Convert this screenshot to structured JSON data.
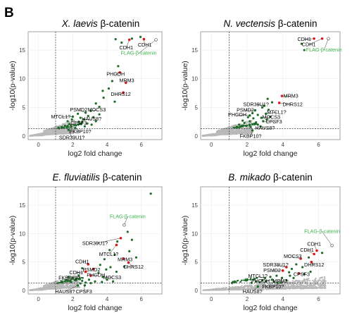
{
  "figure_label": "B",
  "x_axis_title": "log2 fold change",
  "y_axis_title": "-log10(p-value)",
  "x_ticks": [
    "0",
    "2",
    "4",
    "6"
  ],
  "y_ticks": [
    "0",
    "5",
    "10",
    "15"
  ],
  "colors": {
    "bg_point": "#b9b9b9",
    "sig": "#1f6b2a",
    "red": "#d7191c",
    "flag_label": "#3bb34a"
  },
  "chart_data": [
    {
      "type": "scatter",
      "title_species": "X. laevis",
      "title_suffix": " β-catenin",
      "xlabel": "log2 fold change",
      "ylabel": "-log10(p-value)",
      "xlim": [
        -0.6,
        7.2
      ],
      "ylim": [
        -0.6,
        18.2
      ],
      "thresholds": {
        "x": 1.0,
        "y": 1.3
      },
      "highlight": [
        {
          "label": "CDH1",
          "x": 5.3,
          "y": 16.8,
          "kind": "red",
          "lx": 5.12,
          "ly": 15.15,
          "anchor": "middle"
        },
        {
          "label": "CDH1",
          "x": 6.15,
          "y": 16.9,
          "kind": "red",
          "lx": 6.2,
          "ly": 15.6,
          "anchor": "middle"
        },
        {
          "label": "FLAG-β-catenin",
          "x": 6.85,
          "y": 16.8,
          "kind": "flag",
          "lx": 5.85,
          "ly": 14.2,
          "anchor": "middle"
        },
        {
          "label": "PHGDH",
          "x": 4.75,
          "y": 11.1,
          "kind": "red",
          "lx": 4.5,
          "ly": 10.55,
          "anchor": "middle"
        },
        {
          "label": "MRM3",
          "x": 5.1,
          "y": 9.3,
          "kind": "red",
          "lx": 5.15,
          "ly": 9.4,
          "anchor": "middle"
        },
        {
          "label": "DHRS12",
          "x": 4.95,
          "y": 7.6,
          "kind": "red",
          "lx": 4.8,
          "ly": 7.0,
          "anchor": "middle"
        },
        {
          "label": "MOCS3",
          "x": 3.05,
          "y": 4.4,
          "kind": "green",
          "lx": 3.4,
          "ly": 4.3,
          "anchor": "middle"
        },
        {
          "label": "PSMD2",
          "x": 2.75,
          "y": 4.1,
          "kind": "green",
          "lx": 2.35,
          "ly": 4.3,
          "anchor": "middle"
        },
        {
          "label": "MTCL1?",
          "x": 2.0,
          "y": 3.4,
          "kind": "green",
          "lx": 1.3,
          "ly": 3.1,
          "anchor": "middle"
        },
        {
          "label": "HAUS8?",
          "x": 2.65,
          "y": 2.9,
          "kind": "green",
          "lx": 3.1,
          "ly": 2.7,
          "anchor": "middle"
        },
        {
          "label": "CPSF3",
          "x": 2.35,
          "y": 2.5,
          "kind": "green",
          "lx": 2.35,
          "ly": 1.95,
          "anchor": "middle"
        },
        {
          "label": "FKBP10?",
          "x": 2.15,
          "y": 1.4,
          "kind": "green",
          "lx": 2.45,
          "ly": 0.5,
          "anchor": "middle"
        },
        {
          "label": "SDR39U1?",
          "x": 1.75,
          "y": 1.1,
          "kind": "green",
          "lx": 1.95,
          "ly": -0.55,
          "anchor": "middle"
        }
      ],
      "sig_points": [
        [
          4.5,
          16.9
        ],
        [
          4.85,
          16.3
        ],
        [
          5.45,
          17.0
        ],
        [
          5.95,
          17.3
        ],
        [
          4.65,
          12.2
        ],
        [
          4.3,
          9.6
        ],
        [
          4.1,
          8.3
        ],
        [
          3.75,
          7.9
        ],
        [
          3.8,
          6.7
        ],
        [
          3.35,
          5.7
        ],
        [
          3.55,
          5.1
        ],
        [
          4.45,
          6.0
        ],
        [
          2.3,
          3.9
        ],
        [
          2.45,
          3.2
        ],
        [
          2.9,
          3.5
        ],
        [
          3.2,
          3.3
        ],
        [
          3.55,
          3.8
        ],
        [
          1.7,
          2.6
        ],
        [
          1.8,
          2.1
        ],
        [
          1.95,
          2.9
        ],
        [
          2.55,
          2.5
        ],
        [
          2.85,
          2.2
        ],
        [
          1.55,
          1.8
        ],
        [
          1.65,
          1.5
        ],
        [
          1.9,
          1.6
        ],
        [
          2.15,
          1.9
        ],
        [
          2.7,
          1.7
        ],
        [
          3.1,
          2.0
        ],
        [
          3.35,
          2.6
        ],
        [
          1.35,
          1.6
        ]
      ],
      "cloud": {
        "kind": "left",
        "x_start": -0.5,
        "x_end": 2.1,
        "slope": 1.05,
        "base": 0.1
      }
    },
    {
      "type": "scatter",
      "title_species": "N. vectensis",
      "title_suffix": " β-catenin",
      "xlabel": "log2 fold change",
      "ylabel": "-log10(p-value)",
      "xlim": [
        -0.6,
        7.2
      ],
      "ylim": [
        -0.6,
        18.2
      ],
      "thresholds": {
        "x": 1.0,
        "y": 1.3
      },
      "highlight": [
        {
          "label": "CDH1",
          "x": 5.75,
          "y": 17.0,
          "kind": "red",
          "lx": 5.2,
          "ly": 16.6,
          "anchor": "middle"
        },
        {
          "label": "CDH1",
          "x": 6.2,
          "y": 17.0,
          "kind": "red",
          "lx": 5.45,
          "ly": 15.7,
          "anchor": "middle"
        },
        {
          "label": "FLAG-β-catenin",
          "x": 6.55,
          "y": 17.0,
          "kind": "flag",
          "lx": 6.3,
          "ly": 14.75,
          "anchor": "middle"
        },
        {
          "label": "MRM3",
          "x": 3.95,
          "y": 7.0,
          "kind": "red",
          "lx": 4.45,
          "ly": 6.7,
          "anchor": "middle"
        },
        {
          "label": "DHRS12",
          "x": 3.8,
          "y": 5.8,
          "kind": "red",
          "lx": 4.55,
          "ly": 5.25,
          "anchor": "middle"
        },
        {
          "label": "SDR39U1?",
          "x": 2.95,
          "y": 5.3,
          "kind": "green",
          "lx": 2.5,
          "ly": 5.25,
          "anchor": "middle"
        },
        {
          "label": "PSMD2",
          "x": 2.45,
          "y": 4.5,
          "kind": "green",
          "lx": 1.9,
          "ly": 4.25,
          "anchor": "middle"
        },
        {
          "label": "MTCL1?",
          "x": 3.05,
          "y": 3.9,
          "kind": "green",
          "lx": 3.65,
          "ly": 3.9,
          "anchor": "middle"
        },
        {
          "label": "PHGDH",
          "x": 2.15,
          "y": 3.6,
          "kind": "green",
          "lx": 1.45,
          "ly": 3.45,
          "anchor": "middle"
        },
        {
          "label": "MOCS3",
          "x": 2.8,
          "y": 3.2,
          "kind": "green",
          "lx": 3.35,
          "ly": 3.05,
          "anchor": "middle"
        },
        {
          "label": "CPSF3",
          "x": 2.9,
          "y": 2.6,
          "kind": "green",
          "lx": 3.5,
          "ly": 2.2,
          "anchor": "middle"
        },
        {
          "label": "HAUS8?",
          "x": 2.75,
          "y": 1.7,
          "kind": "green",
          "lx": 3.0,
          "ly": 1.15,
          "anchor": "middle"
        },
        {
          "label": "FKBP10?",
          "x": 2.3,
          "y": 1.0,
          "kind": "green",
          "lx": 2.2,
          "ly": -0.3,
          "anchor": "middle"
        }
      ],
      "sig_points": [
        [
          5.2,
          15.0
        ],
        [
          5.05,
          16.1
        ],
        [
          3.15,
          6.5
        ],
        [
          3.4,
          5.9
        ],
        [
          2.85,
          5.0
        ],
        [
          3.2,
          4.6
        ],
        [
          2.3,
          4.0
        ],
        [
          2.6,
          3.7
        ],
        [
          2.05,
          3.3
        ],
        [
          2.35,
          3.1
        ],
        [
          3.3,
          3.4
        ],
        [
          1.75,
          2.7
        ],
        [
          1.85,
          2.3
        ],
        [
          2.15,
          2.6
        ],
        [
          2.5,
          2.4
        ],
        [
          2.6,
          2.0
        ],
        [
          1.55,
          2.0
        ],
        [
          1.6,
          1.6
        ],
        [
          1.95,
          1.8
        ],
        [
          2.2,
          1.6
        ],
        [
          3.1,
          2.9
        ],
        [
          1.4,
          1.5
        ]
      ],
      "cloud": {
        "kind": "left",
        "x_start": -0.5,
        "x_end": 2.3,
        "slope": 1.0,
        "base": 0.1
      }
    },
    {
      "type": "scatter",
      "title_species": "E. fluviatilis",
      "title_suffix": " β-catenin",
      "xlabel": "log2 fold change",
      "ylabel": "-log10(p-value)",
      "xlim": [
        -0.6,
        7.2
      ],
      "ylim": [
        -0.6,
        18.2
      ],
      "thresholds": {
        "x": 1.0,
        "y": 1.3
      },
      "highlight": [
        {
          "label": "FLAG-β-catenin",
          "x": 5.0,
          "y": 11.5,
          "kind": "flag",
          "lx": 5.2,
          "ly": 12.7,
          "anchor": "middle"
        },
        {
          "label": "SDR39U1?",
          "x": 4.8,
          "y": 9.2,
          "kind": "red",
          "lx": 3.3,
          "ly": 8.0,
          "anchor": "middle"
        },
        {
          "label": "MTCL1?",
          "x": 4.55,
          "y": 8.0,
          "kind": "red",
          "lx": 4.1,
          "ly": 6.1,
          "anchor": "middle"
        },
        {
          "label": "MRM3",
          "x": 4.95,
          "y": 5.6,
          "kind": "red",
          "lx": 5.05,
          "ly": 5.15,
          "anchor": "middle"
        },
        {
          "label": "DHRS12",
          "x": 5.25,
          "y": 4.9,
          "kind": "red",
          "lx": 5.55,
          "ly": 3.85,
          "anchor": "middle"
        },
        {
          "label": "CDH1",
          "x": 2.9,
          "y": 4.6,
          "kind": "red",
          "lx": 2.55,
          "ly": 4.75,
          "anchor": "middle"
        },
        {
          "label": "PSMD2",
          "x": 3.2,
          "y": 3.8,
          "kind": "red",
          "lx": 3.1,
          "ly": 3.35,
          "anchor": "middle"
        },
        {
          "label": "CDH1",
          "x": 2.75,
          "y": 3.3,
          "kind": "red",
          "lx": 2.2,
          "ly": 2.85,
          "anchor": "middle"
        },
        {
          "label": "PHGDH",
          "x": 3.05,
          "y": 2.6,
          "kind": "red",
          "lx": 3.35,
          "ly": 2.4,
          "anchor": "middle"
        },
        {
          "label": "MOCS3",
          "x": 3.75,
          "y": 2.4,
          "kind": "green",
          "lx": 4.3,
          "ly": 2.0,
          "anchor": "middle"
        },
        {
          "label": "FKBP10?",
          "x": 2.0,
          "y": 2.2,
          "kind": "green",
          "lx": 1.8,
          "ly": 1.95,
          "anchor": "middle"
        },
        {
          "label": "HAUS8?",
          "x": 2.3,
          "y": 0.9,
          "kind": "green",
          "lx": 1.55,
          "ly": -0.45,
          "anchor": "middle"
        },
        {
          "label": "CPSF3",
          "x": 2.7,
          "y": 0.9,
          "kind": "green",
          "lx": 2.65,
          "ly": -0.45,
          "anchor": "middle"
        }
      ],
      "sig_points": [
        [
          6.55,
          17.0
        ],
        [
          5.2,
          10.3
        ],
        [
          5.45,
          8.9
        ],
        [
          4.6,
          8.6
        ],
        [
          4.15,
          7.1
        ],
        [
          4.45,
          6.3
        ],
        [
          5.3,
          6.9
        ],
        [
          3.85,
          5.5
        ],
        [
          3.6,
          4.5
        ],
        [
          4.2,
          4.1
        ],
        [
          4.55,
          3.3
        ],
        [
          3.5,
          3.1
        ],
        [
          2.55,
          3.9
        ],
        [
          2.35,
          2.6
        ],
        [
          3.95,
          3.7
        ],
        [
          1.75,
          2.4
        ],
        [
          1.6,
          1.8
        ],
        [
          1.9,
          1.5
        ],
        [
          2.2,
          1.8
        ],
        [
          2.55,
          1.7
        ],
        [
          2.95,
          1.9
        ],
        [
          3.3,
          1.6
        ],
        [
          3.7,
          1.5
        ],
        [
          4.0,
          1.9
        ],
        [
          4.35,
          1.6
        ],
        [
          1.4,
          1.4
        ],
        [
          2.75,
          1.4
        ],
        [
          3.05,
          1.3
        ],
        [
          2.45,
          1.25
        ],
        [
          5.7,
          5.8
        ],
        [
          5.0,
          4.2
        ]
      ],
      "cloud": {
        "kind": "left",
        "x_start": -0.5,
        "x_end": 2.4,
        "slope": 1.0,
        "base": 0.1
      }
    },
    {
      "type": "scatter",
      "title_species": "B. mikado",
      "title_suffix": " β-catenin",
      "xlabel": "log2 fold change",
      "ylabel": "-log10(p-value)",
      "xlim": [
        -0.6,
        7.2
      ],
      "ylim": [
        -0.6,
        18.2
      ],
      "thresholds": {
        "x": 1.0,
        "y": 1.3
      },
      "highlight": [
        {
          "label": "FLAG-β-catenin",
          "x": 6.75,
          "y": 7.9,
          "kind": "flag",
          "lx": 6.2,
          "ly": 10.1,
          "anchor": "middle"
        },
        {
          "label": "CDH1",
          "x": 5.9,
          "y": 7.0,
          "kind": "red",
          "lx": 5.75,
          "ly": 7.85,
          "anchor": "middle"
        },
        {
          "label": "CDH1",
          "x": 5.75,
          "y": 6.4,
          "kind": "red",
          "lx": 5.35,
          "ly": 6.8,
          "anchor": "middle"
        },
        {
          "label": "MOCS3",
          "x": 5.0,
          "y": 5.6,
          "kind": "red",
          "lx": 4.55,
          "ly": 5.7,
          "anchor": "middle"
        },
        {
          "label": "DHRS12",
          "x": 5.6,
          "y": 5.0,
          "kind": "red",
          "lx": 5.75,
          "ly": 4.25,
          "anchor": "middle"
        },
        {
          "label": "SDR39U1?",
          "x": 4.2,
          "y": 4.1,
          "kind": "red",
          "lx": 3.6,
          "ly": 4.2,
          "anchor": "middle"
        },
        {
          "label": "PSMD2",
          "x": 4.0,
          "y": 3.5,
          "kind": "red",
          "lx": 3.4,
          "ly": 3.25,
          "anchor": "middle"
        },
        {
          "label": "CPSF3",
          "x": 4.9,
          "y": 3.0,
          "kind": "red",
          "lx": 5.05,
          "ly": 2.55,
          "anchor": "middle"
        },
        {
          "label": "MTCL1?",
          "x": 3.0,
          "y": 2.2,
          "kind": "green",
          "lx": 2.6,
          "ly": 2.25,
          "anchor": "middle"
        },
        {
          "label": "PHGDH",
          "x": 3.4,
          "y": 1.9,
          "kind": "green",
          "lx": 2.75,
          "ly": 1.35,
          "anchor": "middle"
        },
        {
          "label": "MRM3",
          "x": 3.95,
          "y": 2.2,
          "kind": "green",
          "lx": 3.85,
          "ly": 1.35,
          "anchor": "middle"
        },
        {
          "label": "FKBP10?",
          "x": 3.9,
          "y": 1.4,
          "kind": "green",
          "lx": 3.45,
          "ly": 0.4,
          "anchor": "middle"
        },
        {
          "label": "HAUS8?",
          "x": 2.6,
          "y": 0.7,
          "kind": "green",
          "lx": 2.3,
          "ly": -0.45,
          "anchor": "middle"
        }
      ],
      "sig_points": [
        [
          6.2,
          6.6
        ],
        [
          5.45,
          5.8
        ],
        [
          4.75,
          4.6
        ],
        [
          5.1,
          4.1
        ],
        [
          4.5,
          3.8
        ],
        [
          4.35,
          3.2
        ],
        [
          3.65,
          2.6
        ],
        [
          3.3,
          2.4
        ],
        [
          2.85,
          1.85
        ],
        [
          2.5,
          1.6
        ],
        [
          2.7,
          1.45
        ],
        [
          3.05,
          1.6
        ],
        [
          3.5,
          1.55
        ],
        [
          4.2,
          1.8
        ],
        [
          4.6,
          2.2
        ],
        [
          5.2,
          2.9
        ],
        [
          5.55,
          3.3
        ],
        [
          2.25,
          1.35
        ],
        [
          3.7,
          1.35
        ],
        [
          4.4,
          2.6
        ]
      ],
      "cloud": {
        "kind": "band",
        "x_start": -0.5,
        "x_end": 6.4,
        "slope": 0.35,
        "base": 0.05
      }
    }
  ]
}
